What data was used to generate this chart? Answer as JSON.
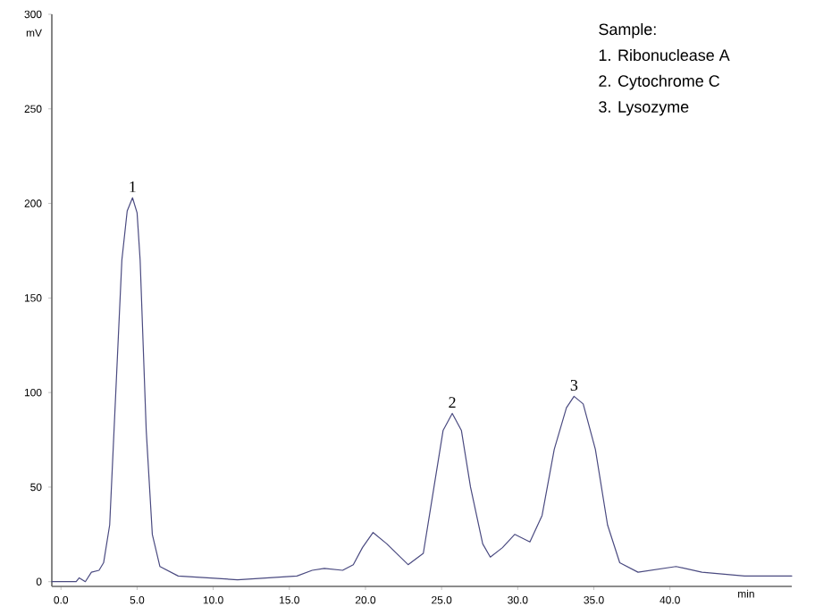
{
  "chart_data": {
    "type": "line",
    "xlabel": "min",
    "ylabel": "mV",
    "xlim": [
      -0.6,
      48
    ],
    "ylim": [
      -2.5,
      300
    ],
    "xticks": [
      {
        "value": 0,
        "label": "0.0"
      },
      {
        "value": 5,
        "label": "5.0"
      },
      {
        "value": 10,
        "label": "10.0"
      },
      {
        "value": 15,
        "label": "15.0"
      },
      {
        "value": 20,
        "label": "20.0"
      },
      {
        "value": 25,
        "label": "25.0"
      },
      {
        "value": 30,
        "label": "30.0"
      },
      {
        "value": 35,
        "label": "35.0"
      },
      {
        "value": 40,
        "label": "40.0"
      }
    ],
    "yticks": [
      0,
      50,
      100,
      150,
      200,
      250,
      300
    ],
    "grid": false,
    "marker": "none",
    "line_style": "solid",
    "series": [
      {
        "color": "#4a4a80",
        "x": [
          -0.6,
          1.0,
          1.2,
          1.6,
          2.0,
          2.5,
          2.8,
          3.2,
          3.6,
          4.0,
          4.35,
          4.7,
          5.0,
          5.2,
          5.6,
          6.0,
          6.5,
          7.7,
          11.6,
          15.5,
          16.5,
          17.3,
          18.5,
          19.2,
          19.8,
          20.5,
          21.4,
          22.8,
          23.8,
          24.5,
          25.1,
          25.7,
          26.3,
          26.9,
          27.7,
          28.2,
          29.0,
          29.8,
          30.8,
          31.6,
          32.4,
          33.2,
          33.7,
          34.3,
          35.1,
          35.9,
          36.7,
          37.9,
          40.4,
          42.1,
          44.9,
          48.0
        ],
        "values": [
          0,
          0,
          2,
          0,
          5,
          6,
          10,
          30,
          100,
          170,
          196,
          203,
          195,
          170,
          80,
          25,
          8,
          3,
          1,
          3,
          6,
          7,
          6,
          9,
          18,
          26,
          20,
          9,
          15,
          50,
          80,
          89,
          80,
          50,
          20,
          13,
          18,
          25,
          21,
          35,
          70,
          92,
          98,
          94,
          70,
          30,
          10,
          5,
          8,
          5,
          3,
          3
        ]
      }
    ],
    "annotations": [
      {
        "text": "1",
        "x": 4.7,
        "y": 203
      },
      {
        "text": "2",
        "x": 25.7,
        "y": 89
      },
      {
        "text": "3",
        "x": 33.7,
        "y": 98
      },
      "Sample:",
      "1. Ribonuclease A",
      "2. Cytochrome C",
      "3. Lysozyme"
    ]
  }
}
